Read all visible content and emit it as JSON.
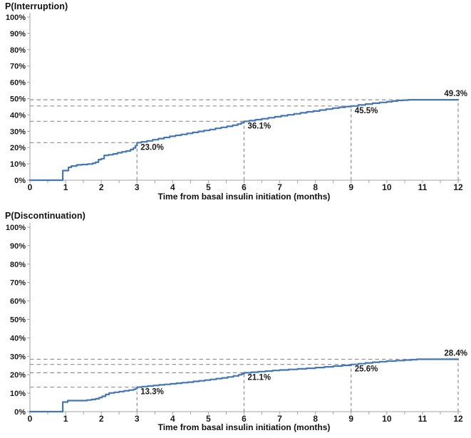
{
  "colors": {
    "curve": "#4576b4",
    "dashed_reference": "#8f8f8f",
    "axis": "#a3a3a3",
    "text": "#1a1a1a"
  },
  "chart_data": [
    {
      "type": "line",
      "title": "P(Interruption)",
      "xlabel": "Time from basal insulin initiation (months)",
      "ylabel": "",
      "xlim": [
        0,
        12
      ],
      "ylim": [
        0,
        100
      ],
      "grid": "none",
      "legend": "none",
      "x_ticks": [
        "0",
        "1",
        "2",
        "3",
        "4",
        "5",
        "6",
        "7",
        "8",
        "9",
        "10",
        "11",
        "12"
      ],
      "y_ticks": [
        "0%",
        "10%",
        "20%",
        "30%",
        "40%",
        "50%",
        "60%",
        "70%",
        "80%",
        "90%",
        "100%"
      ],
      "milestones": [
        {
          "month": 3,
          "value": 23.0,
          "label": "23.0%",
          "label_position": "below-right"
        },
        {
          "month": 6,
          "value": 36.1,
          "label": "36.1%",
          "label_position": "below-right"
        },
        {
          "month": 9,
          "value": 45.5,
          "label": "45.5%",
          "label_position": "below-right"
        },
        {
          "month": 12,
          "value": 49.3,
          "label": "49.3%",
          "label_position": "above"
        }
      ],
      "points": [
        [
          0,
          0
        ],
        [
          0.92,
          0
        ],
        [
          0.92,
          5.9
        ],
        [
          1.08,
          5.9
        ],
        [
          1.08,
          7.9
        ],
        [
          1.16,
          8.7
        ],
        [
          1.31,
          9.4
        ],
        [
          1.46,
          9.6
        ],
        [
          1.62,
          9.9
        ],
        [
          1.76,
          10.4
        ],
        [
          1.84,
          11.0
        ],
        [
          1.92,
          12.6
        ],
        [
          2.0,
          13.2
        ],
        [
          2.08,
          15.2
        ],
        [
          2.2,
          15.6
        ],
        [
          2.33,
          16.1
        ],
        [
          2.45,
          16.8
        ],
        [
          2.58,
          17.4
        ],
        [
          2.7,
          17.9
        ],
        [
          2.82,
          18.8
        ],
        [
          2.9,
          19.8
        ],
        [
          2.96,
          21.2
        ],
        [
          3.0,
          23.0
        ],
        [
          3.12,
          23.5
        ],
        [
          3.28,
          24.1
        ],
        [
          3.44,
          24.8
        ],
        [
          3.6,
          25.5
        ],
        [
          3.76,
          26.2
        ],
        [
          3.92,
          26.9
        ],
        [
          4.08,
          27.5
        ],
        [
          4.24,
          28.1
        ],
        [
          4.4,
          28.7
        ],
        [
          4.56,
          29.3
        ],
        [
          4.72,
          29.9
        ],
        [
          4.88,
          30.5
        ],
        [
          5.04,
          31.1
        ],
        [
          5.2,
          31.8
        ],
        [
          5.36,
          32.4
        ],
        [
          5.52,
          33.0
        ],
        [
          5.68,
          33.7
        ],
        [
          5.82,
          34.4
        ],
        [
          5.92,
          35.2
        ],
        [
          6.0,
          36.1
        ],
        [
          6.15,
          36.5
        ],
        [
          6.32,
          37.1
        ],
        [
          6.5,
          37.7
        ],
        [
          6.68,
          38.3
        ],
        [
          6.86,
          38.9
        ],
        [
          7.04,
          39.5
        ],
        [
          7.22,
          40.1
        ],
        [
          7.4,
          40.7
        ],
        [
          7.58,
          41.3
        ],
        [
          7.76,
          41.9
        ],
        [
          7.94,
          42.4
        ],
        [
          8.12,
          43.0
        ],
        [
          8.3,
          43.6
        ],
        [
          8.48,
          44.2
        ],
        [
          8.66,
          44.7
        ],
        [
          8.84,
          45.1
        ],
        [
          9.0,
          45.5
        ],
        [
          9.2,
          46.1
        ],
        [
          9.4,
          46.7
        ],
        [
          9.6,
          47.2
        ],
        [
          9.8,
          47.7
        ],
        [
          10.0,
          48.1
        ],
        [
          10.15,
          48.5
        ],
        [
          10.3,
          48.9
        ],
        [
          10.45,
          49.1
        ],
        [
          10.6,
          49.3
        ],
        [
          12,
          49.3
        ]
      ]
    },
    {
      "type": "line",
      "title": "P(Discontinuation)",
      "xlabel": "Time from basal insulin initiation (months)",
      "ylabel": "",
      "xlim": [
        0,
        12
      ],
      "ylim": [
        0,
        100
      ],
      "grid": "none",
      "legend": "none",
      "x_ticks": [
        "0",
        "1",
        "2",
        "3",
        "4",
        "5",
        "6",
        "7",
        "8",
        "9",
        "10",
        "11",
        "12"
      ],
      "y_ticks": [
        "0%",
        "10%",
        "20%",
        "30%",
        "40%",
        "50%",
        "60%",
        "70%",
        "80%",
        "90%",
        "100%"
      ],
      "milestones": [
        {
          "month": 3,
          "value": 13.3,
          "label": "13.3%",
          "label_position": "below-right"
        },
        {
          "month": 6,
          "value": 21.1,
          "label": "21.1%",
          "label_position": "below-right"
        },
        {
          "month": 9,
          "value": 25.6,
          "label": "25.6%",
          "label_position": "below-right"
        },
        {
          "month": 12,
          "value": 28.4,
          "label": "28.4%",
          "label_position": "above"
        }
      ],
      "points": [
        [
          0,
          0
        ],
        [
          0.92,
          0
        ],
        [
          0.92,
          5.2
        ],
        [
          1.06,
          5.2
        ],
        [
          1.06,
          6.0
        ],
        [
          1.48,
          6.0
        ],
        [
          1.6,
          6.3
        ],
        [
          1.72,
          6.6
        ],
        [
          1.84,
          7.0
        ],
        [
          1.94,
          7.6
        ],
        [
          2.02,
          8.3
        ],
        [
          2.12,
          9.3
        ],
        [
          2.22,
          10.1
        ],
        [
          2.36,
          10.5
        ],
        [
          2.5,
          10.9
        ],
        [
          2.64,
          11.3
        ],
        [
          2.78,
          11.7
        ],
        [
          2.9,
          12.1
        ],
        [
          2.96,
          12.5
        ],
        [
          3.0,
          13.3
        ],
        [
          3.14,
          13.6
        ],
        [
          3.3,
          13.9
        ],
        [
          3.46,
          14.2
        ],
        [
          3.62,
          14.5
        ],
        [
          3.78,
          14.8
        ],
        [
          3.94,
          15.1
        ],
        [
          4.1,
          15.4
        ],
        [
          4.26,
          15.7
        ],
        [
          4.42,
          16.0
        ],
        [
          4.58,
          16.4
        ],
        [
          4.74,
          16.7
        ],
        [
          4.9,
          17.1
        ],
        [
          5.06,
          17.5
        ],
        [
          5.22,
          17.9
        ],
        [
          5.38,
          18.3
        ],
        [
          5.54,
          18.8
        ],
        [
          5.7,
          19.4
        ],
        [
          5.85,
          20.0
        ],
        [
          5.94,
          20.5
        ],
        [
          6.0,
          21.1
        ],
        [
          6.2,
          21.4
        ],
        [
          6.4,
          21.7
        ],
        [
          6.6,
          22.0
        ],
        [
          6.8,
          22.3
        ],
        [
          7.0,
          22.6
        ],
        [
          7.25,
          22.9
        ],
        [
          7.5,
          23.2
        ],
        [
          7.75,
          23.5
        ],
        [
          8.0,
          23.9
        ],
        [
          8.25,
          24.3
        ],
        [
          8.5,
          24.7
        ],
        [
          8.75,
          25.1
        ],
        [
          9.0,
          25.6
        ],
        [
          9.2,
          26.0
        ],
        [
          9.4,
          26.4
        ],
        [
          9.6,
          26.8
        ],
        [
          9.8,
          27.1
        ],
        [
          10.0,
          27.4
        ],
        [
          10.25,
          27.7
        ],
        [
          10.5,
          28.0
        ],
        [
          10.7,
          28.2
        ],
        [
          10.85,
          28.4
        ],
        [
          12,
          28.4
        ]
      ]
    }
  ]
}
